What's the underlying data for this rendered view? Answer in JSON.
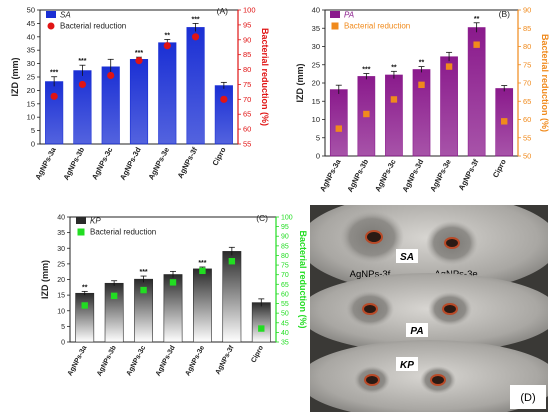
{
  "chart_data": [
    {
      "type": "bar",
      "panel_label": "(A)",
      "categories": [
        "AgNPs-3a",
        "AgNPs-3b",
        "AgNPs-3c",
        "AgNPs-3d",
        "AgNPs-3e",
        "AgNPs-3f",
        "Cipro"
      ],
      "series": [
        {
          "name": "SA",
          "type": "bar",
          "axis": "left",
          "color": "#1a2fd4",
          "values": [
            23.3,
            27.4,
            28.8,
            31.6,
            37.8,
            43.5,
            21.8
          ],
          "errors": [
            1.8,
            2.0,
            2.8,
            0.8,
            1.2,
            1.5,
            1.2
          ]
        },
        {
          "name": "Bacterial reduction",
          "type": "scatter",
          "axis": "right",
          "color": "#e01414",
          "values": [
            71,
            75,
            78,
            83,
            88,
            91,
            70
          ]
        }
      ],
      "stars": [
        "***",
        "***",
        "",
        "***",
        "**",
        "***",
        ""
      ],
      "ylabel": "IZD (mm)",
      "ylabel_right": "Bacterial reduction (%)",
      "ylim": [
        0,
        50
      ],
      "ylim_right": [
        55,
        100
      ],
      "yticks": [
        0,
        5,
        10,
        15,
        20,
        25,
        30,
        35,
        40,
        45,
        50
      ],
      "yticks_right": [
        55,
        60,
        65,
        70,
        75,
        80,
        85,
        90,
        95,
        100
      ]
    },
    {
      "type": "bar",
      "panel_label": "(B)",
      "categories": [
        "AgNPs-3a",
        "AgNPs-3b",
        "AgNPs-3c",
        "AgNPs-3d",
        "AgNPs-3e",
        "AgNPs-3f",
        "Cipro"
      ],
      "series": [
        {
          "name": "PA",
          "type": "bar",
          "axis": "left",
          "color": "#8a1a8c",
          "values": [
            18.2,
            21.8,
            22.2,
            23.7,
            27.2,
            35.2,
            18.5
          ],
          "errors": [
            1.2,
            0.8,
            1.0,
            0.8,
            1.2,
            1.3,
            0.8
          ]
        },
        {
          "name": "Bacterial reduction",
          "type": "scatter",
          "axis": "right",
          "color": "#f08a1c",
          "values": [
            57.5,
            61.5,
            65.5,
            69.5,
            74.5,
            80.5,
            59.5
          ]
        }
      ],
      "stars": [
        "",
        "***",
        "**",
        "**",
        "",
        "**",
        ""
      ],
      "ylabel": "IZD (mm)",
      "ylabel_right": "Bacterial reduction (%)",
      "ylim": [
        0,
        40
      ],
      "ylim_right": [
        50,
        90
      ],
      "yticks": [
        0,
        5,
        10,
        15,
        20,
        25,
        30,
        35,
        40
      ],
      "yticks_right": [
        50,
        55,
        60,
        65,
        70,
        75,
        80,
        85,
        90
      ]
    },
    {
      "type": "bar",
      "panel_label": "(C)",
      "categories": [
        "AgNPs-3a",
        "AgNPs-3b",
        "AgNPs-3c",
        "AgNPs-3d",
        "AgNPs-3e",
        "AgNPs-3f",
        "Cipro"
      ],
      "series": [
        {
          "name": "KP",
          "type": "bar",
          "axis": "left",
          "color": "#2a2a2a",
          "values": [
            15.6,
            18.8,
            20.1,
            21.6,
            23.4,
            29.0,
            12.6
          ],
          "errors": [
            0.6,
            0.8,
            1.0,
            1.0,
            0.6,
            1.3,
            1.2
          ]
        },
        {
          "name": "Bacterial reduction",
          "type": "scatter",
          "axis": "right",
          "color": "#22dd22",
          "values": [
            54,
            59,
            62,
            66,
            72,
            77,
            42
          ]
        }
      ],
      "stars": [
        "**",
        "",
        "***",
        "",
        "***",
        "",
        ""
      ],
      "ylabel": "IZD (mm)",
      "ylabel_right": "Bacterial reduction (%)",
      "ylim": [
        0,
        40
      ],
      "ylim_right": [
        35,
        100
      ],
      "yticks": [
        0,
        5,
        10,
        15,
        20,
        25,
        30,
        35,
        40
      ],
      "yticks_right": [
        35,
        40,
        45,
        50,
        55,
        60,
        65,
        70,
        75,
        80,
        85,
        90,
        95,
        100
      ]
    }
  ],
  "photo": {
    "panel_label": "(D)",
    "labels": [
      "SA",
      "PA",
      "KP",
      "AgNPs-3f",
      "AgNPs-3e"
    ]
  }
}
